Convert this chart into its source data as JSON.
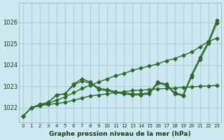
{
  "title": "Graphe pression niveau de la mer (hPa)",
  "bg_color": "#cce8f0",
  "grid_color": "#b0ccd4",
  "line_color": "#2d6a2d",
  "x_labels": [
    "0",
    "1",
    "2",
    "3",
    "4",
    "5",
    "6",
    "7",
    "8",
    "9",
    "10",
    "11",
    "12",
    "13",
    "14",
    "15",
    "16",
    "17",
    "18",
    "19",
    "20",
    "21",
    "22",
    "23"
  ],
  "y_ticks": [
    1022,
    1023,
    1024,
    1025,
    1026
  ],
  "ylim": [
    1021.3,
    1026.9
  ],
  "xlim": [
    -0.5,
    23.5
  ],
  "series": [
    [
      1021.6,
      1022.0,
      1022.1,
      1022.15,
      1022.2,
      1022.25,
      1022.35,
      1022.45,
      1022.55,
      1022.6,
      1022.65,
      1022.7,
      1022.75,
      1022.8,
      1022.82,
      1022.85,
      1022.88,
      1022.9,
      1022.92,
      1022.95,
      1022.97,
      1023.0,
      1023.02,
      1023.05
    ],
    [
      1021.6,
      1022.0,
      1022.1,
      1022.2,
      1022.35,
      1022.5,
      1022.7,
      1022.9,
      1023.05,
      1023.2,
      1023.35,
      1023.5,
      1023.6,
      1023.75,
      1023.85,
      1023.95,
      1024.05,
      1024.2,
      1024.3,
      1024.45,
      1024.6,
      1024.85,
      1025.1,
      1025.25
    ],
    [
      1021.6,
      1022.0,
      1022.15,
      1022.25,
      1022.6,
      1022.65,
      1023.1,
      1023.35,
      1023.2,
      1022.9,
      1022.85,
      1022.75,
      1022.7,
      1022.65,
      1022.65,
      1022.7,
      1023.2,
      1023.1,
      1022.7,
      1022.6,
      1023.55,
      1024.35,
      1025.1,
      1026.1
    ],
    [
      1021.6,
      1022.0,
      1022.15,
      1022.25,
      1022.6,
      1022.65,
      1023.05,
      1023.25,
      1023.15,
      1022.85,
      1022.8,
      1022.7,
      1022.65,
      1022.6,
      1022.6,
      1022.65,
      1023.15,
      1023.05,
      1022.65,
      1022.55,
      1023.45,
      1024.25,
      1025.0,
      1025.95
    ]
  ]
}
